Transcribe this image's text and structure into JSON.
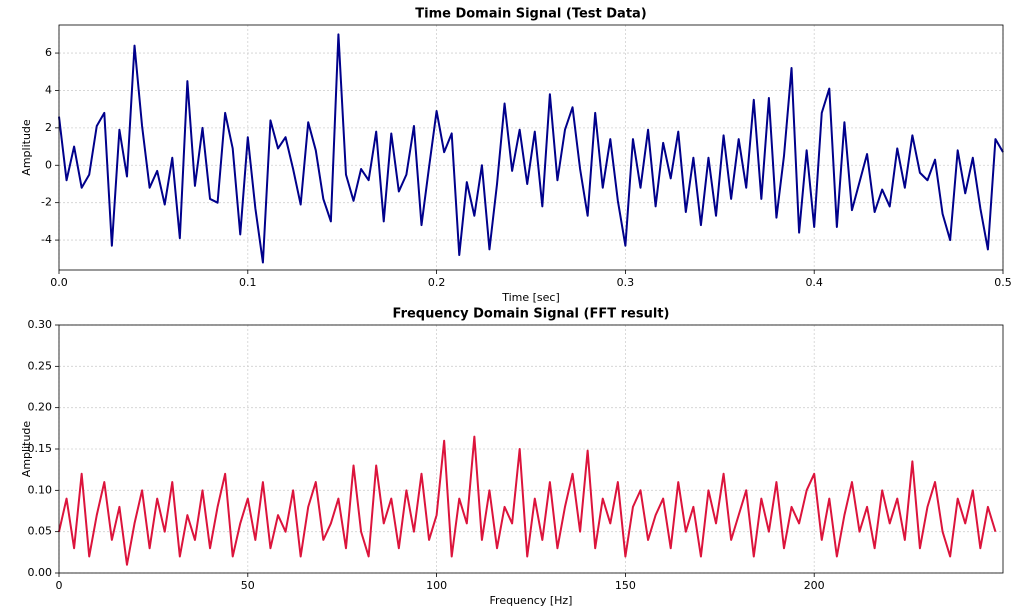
{
  "chart_data": [
    {
      "type": "line",
      "title": "Time Domain Signal (Test Data)",
      "xlabel": "Time [sec]",
      "ylabel": "Amplitude",
      "color": "#00008b",
      "grid": true,
      "xlim": [
        0,
        0.5
      ],
      "ylim": [
        -5.6,
        7.5
      ],
      "xticks": [
        {
          "value": 0,
          "label": "0.0"
        },
        0.1,
        0.2,
        0.3,
        0.4,
        0.5
      ],
      "yticks": [
        -4,
        -2,
        0,
        2,
        4,
        6
      ],
      "x": [
        0,
        0.004,
        0.008,
        0.012,
        0.016,
        0.02,
        0.024,
        0.028,
        0.032,
        0.036,
        0.04,
        0.044,
        0.048,
        0.052,
        0.056,
        0.06,
        0.064,
        0.068,
        0.072,
        0.076,
        0.08,
        0.084,
        0.088,
        0.092,
        0.096,
        0.1,
        0.104,
        0.108,
        0.112,
        0.116,
        0.12,
        0.124,
        0.128,
        0.132,
        0.136,
        0.14,
        0.144,
        0.148,
        0.152,
        0.156,
        0.16,
        0.164,
        0.168,
        0.172,
        0.176,
        0.18,
        0.184,
        0.188,
        0.192,
        0.196,
        0.2,
        0.204,
        0.208,
        0.212,
        0.216,
        0.22,
        0.224,
        0.228,
        0.232,
        0.236,
        0.24,
        0.244,
        0.248,
        0.252,
        0.256,
        0.26,
        0.264,
        0.268,
        0.272,
        0.276,
        0.28,
        0.284,
        0.288,
        0.292,
        0.296,
        0.3,
        0.304,
        0.308,
        0.312,
        0.316,
        0.32,
        0.324,
        0.328,
        0.332,
        0.336,
        0.34,
        0.344,
        0.348,
        0.352,
        0.356,
        0.36,
        0.364,
        0.368,
        0.372,
        0.376,
        0.38,
        0.384,
        0.388,
        0.392,
        0.396,
        0.4,
        0.404,
        0.408,
        0.412,
        0.416,
        0.42,
        0.424,
        0.428,
        0.432,
        0.436,
        0.44,
        0.444,
        0.448,
        0.452,
        0.456,
        0.46,
        0.464,
        0.468,
        0.472,
        0.476,
        0.48,
        0.484,
        0.488,
        0.492,
        0.496,
        0.5
      ],
      "values": [
        2.6,
        -0.8,
        1.0,
        -1.2,
        -0.5,
        2.1,
        2.8,
        -4.3,
        1.9,
        -0.6,
        6.4,
        2.1,
        -1.2,
        -0.3,
        -2.1,
        0.4,
        -3.9,
        4.5,
        -1.1,
        2.0,
        -1.8,
        -2.0,
        2.8,
        0.9,
        -3.7,
        1.5,
        -2.3,
        -5.2,
        2.4,
        0.9,
        1.5,
        -0.2,
        -2.1,
        2.3,
        0.8,
        -1.8,
        -3.0,
        7.0,
        -0.5,
        -1.9,
        -0.2,
        -0.8,
        1.8,
        -3.0,
        1.7,
        -1.4,
        -0.5,
        2.1,
        -3.2,
        -0.1,
        2.9,
        0.7,
        1.7,
        -4.8,
        -0.9,
        -2.7,
        0.0,
        -4.5,
        -1.0,
        3.3,
        -0.3,
        1.9,
        -1.0,
        1.8,
        -2.2,
        3.8,
        -0.8,
        1.9,
        3.1,
        -0.2,
        -2.7,
        2.8,
        -1.2,
        1.4,
        -1.9,
        -4.3,
        1.4,
        -1.2,
        1.9,
        -2.2,
        1.2,
        -0.7,
        1.8,
        -2.5,
        0.4,
        -3.2,
        0.4,
        -2.7,
        1.6,
        -1.8,
        1.4,
        -1.2,
        3.5,
        -1.8,
        3.6,
        -2.8,
        0.5,
        5.2,
        -3.6,
        0.8,
        -3.3,
        2.8,
        4.1,
        -3.3,
        2.3,
        -2.4,
        -0.9,
        0.6,
        -2.5,
        -1.3,
        -2.2,
        0.9,
        -1.2,
        1.6,
        -0.4,
        -0.8,
        0.3,
        -2.6,
        -4.0,
        0.8,
        -1.5,
        0.4,
        -2.3,
        -4.5,
        1.4,
        0.7
      ]
    },
    {
      "type": "line",
      "title": "Frequency Domain Signal (FFT result)",
      "xlabel": "Frequency [Hz]",
      "ylabel": "Amplitude",
      "color": "#dc143c",
      "grid": true,
      "xlim": [
        0,
        250
      ],
      "ylim": [
        0,
        0.3
      ],
      "xticks": [
        0,
        50,
        100,
        150,
        200
      ],
      "yticks": [
        {
          "value": 0,
          "label": "0.00"
        },
        {
          "value": 0.05,
          "label": "0.05"
        },
        {
          "value": 0.1,
          "label": "0.10"
        },
        {
          "value": 0.15,
          "label": "0.15"
        },
        {
          "value": 0.2,
          "label": "0.20"
        },
        {
          "value": 0.25,
          "label": "0.25"
        },
        {
          "value": 0.3,
          "label": "0.30"
        }
      ],
      "x": [
        0,
        2,
        4,
        6,
        8,
        10,
        12,
        14,
        16,
        18,
        20,
        22,
        24,
        26,
        28,
        30,
        32,
        34,
        36,
        38,
        40,
        42,
        44,
        46,
        48,
        50,
        52,
        54,
        56,
        58,
        60,
        62,
        64,
        66,
        68,
        70,
        72,
        74,
        76,
        78,
        80,
        82,
        84,
        86,
        88,
        90,
        92,
        94,
        96,
        98,
        100,
        102,
        104,
        106,
        108,
        110,
        112,
        114,
        116,
        118,
        120,
        122,
        124,
        126,
        128,
        130,
        132,
        134,
        136,
        138,
        140,
        142,
        144,
        146,
        148,
        150,
        152,
        154,
        156,
        158,
        160,
        162,
        164,
        166,
        168,
        170,
        172,
        174,
        176,
        178,
        180,
        182,
        184,
        186,
        188,
        190,
        192,
        194,
        196,
        198,
        200,
        202,
        204,
        206,
        208,
        210,
        212,
        214,
        216,
        218,
        220,
        222,
        224,
        226,
        228,
        230,
        232,
        234,
        236,
        238,
        240,
        242,
        244,
        246,
        248
      ],
      "values": [
        0.05,
        0.09,
        0.03,
        0.12,
        0.02,
        0.07,
        0.11,
        0.04,
        0.08,
        0.01,
        0.06,
        0.1,
        0.03,
        0.09,
        0.05,
        0.11,
        0.02,
        0.07,
        0.04,
        0.1,
        0.03,
        0.08,
        0.12,
        0.02,
        0.06,
        0.09,
        0.04,
        0.11,
        0.03,
        0.07,
        0.05,
        0.1,
        0.02,
        0.08,
        0.11,
        0.04,
        0.06,
        0.09,
        0.03,
        0.13,
        0.05,
        0.02,
        0.13,
        0.06,
        0.09,
        0.03,
        0.1,
        0.05,
        0.12,
        0.04,
        0.07,
        0.16,
        0.02,
        0.09,
        0.06,
        0.165,
        0.04,
        0.1,
        0.03,
        0.08,
        0.06,
        0.15,
        0.02,
        0.09,
        0.04,
        0.11,
        0.03,
        0.08,
        0.12,
        0.05,
        0.148,
        0.03,
        0.09,
        0.06,
        0.11,
        0.02,
        0.08,
        0.1,
        0.04,
        0.07,
        0.09,
        0.03,
        0.11,
        0.05,
        0.08,
        0.02,
        0.1,
        0.06,
        0.12,
        0.04,
        0.07,
        0.1,
        0.02,
        0.09,
        0.05,
        0.11,
        0.03,
        0.08,
        0.06,
        0.1,
        0.12,
        0.04,
        0.09,
        0.02,
        0.07,
        0.11,
        0.05,
        0.08,
        0.03,
        0.1,
        0.06,
        0.09,
        0.04,
        0.135,
        0.03,
        0.08,
        0.11,
        0.05,
        0.02,
        0.09,
        0.06,
        0.1,
        0.03,
        0.08,
        0.05
      ]
    }
  ]
}
